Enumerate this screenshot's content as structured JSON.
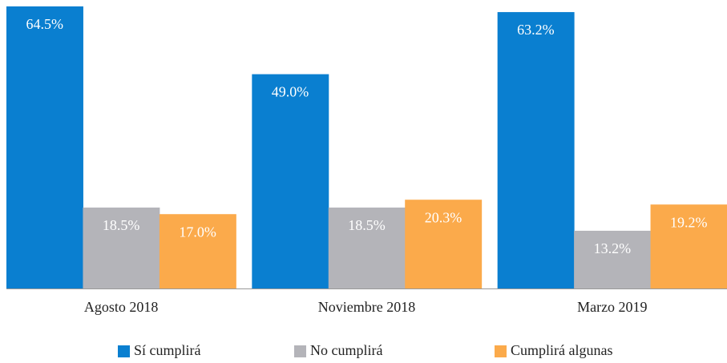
{
  "chart_data": {
    "type": "bar",
    "categories": [
      "Agosto 2018",
      "Noviembre 2018",
      "Marzo 2019"
    ],
    "series": [
      {
        "name": "Sí cumplirá",
        "color": "#0a7fd0",
        "values": [
          64.5,
          49.0,
          63.2
        ],
        "value_labels": [
          "64.5%",
          "49.0%",
          "63.2%"
        ]
      },
      {
        "name": "No cumplirá",
        "color": "#b4b4b9",
        "values": [
          18.5,
          18.5,
          13.2
        ],
        "value_labels": [
          "18.5%",
          "18.5%",
          "13.2%"
        ]
      },
      {
        "name": "Cumplirá algunas",
        "color": "#fbaa4b",
        "values": [
          17.0,
          20.3,
          19.2
        ],
        "value_labels": [
          "17.0%",
          "20.3%",
          "19.2%"
        ]
      }
    ],
    "legend": "bottom"
  }
}
